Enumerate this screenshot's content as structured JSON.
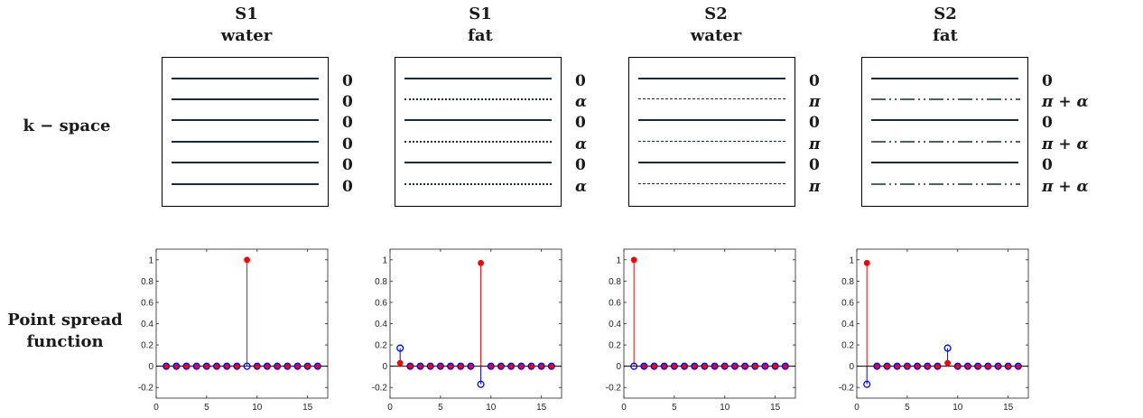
{
  "panels": [
    {
      "id": "s1-water",
      "title": [
        "S1",
        "water"
      ],
      "lines": [
        "solid",
        "solid",
        "solid",
        "solid",
        "solid",
        "solid"
      ],
      "phases": [
        "0",
        "0",
        "0",
        "0",
        "0",
        "0"
      ]
    },
    {
      "id": "s1-fat",
      "title": [
        "S1",
        "fat"
      ],
      "lines": [
        "solid",
        "dotted",
        "solid",
        "dotted",
        "solid",
        "dotted"
      ],
      "phases": [
        "0",
        "α",
        "0",
        "α",
        "0",
        "α"
      ]
    },
    {
      "id": "s2-water",
      "title": [
        "S2",
        "water"
      ],
      "lines": [
        "solid",
        "dashed",
        "solid",
        "dashed",
        "solid",
        "dashed"
      ],
      "phases": [
        "0",
        "π",
        "0",
        "π",
        "0",
        "π"
      ]
    },
    {
      "id": "s2-fat",
      "title": [
        "S2",
        "fat"
      ],
      "lines": [
        "solid",
        "dashdot",
        "solid",
        "dashdot",
        "solid",
        "dashdot"
      ],
      "phases": [
        "0",
        "π + α",
        "0",
        "π + α",
        "0",
        "π + α"
      ]
    }
  ],
  "row_labels": {
    "kspace": "k − space",
    "psf_line1": "Point spread",
    "psf_line2": "function"
  },
  "colors": {
    "red": "#ff0000",
    "blue": "#0000ff",
    "line": "#1a2a36"
  },
  "chart_data": [
    {
      "type": "stem",
      "id": "psf-s1-water",
      "xlim": [
        0,
        17
      ],
      "ylim": [
        -0.3,
        1.1
      ],
      "xticks": [
        0,
        5,
        10,
        15
      ],
      "yticks": [
        -0.2,
        0,
        0.2,
        0.4,
        0.6,
        0.8,
        1
      ],
      "ytick_labels": [
        "-0.2",
        "0",
        "0.2",
        "0.4",
        "0.6",
        "0.8",
        "1"
      ],
      "red": {
        "name": "filled",
        "x": [
          1,
          2,
          3,
          4,
          5,
          6,
          7,
          8,
          9,
          10,
          11,
          12,
          13,
          14,
          15,
          16
        ],
        "y": [
          0,
          0,
          0,
          0,
          0,
          0,
          0,
          0,
          1,
          0,
          0,
          0,
          0,
          0,
          0,
          0
        ]
      },
      "blue": {
        "name": "open",
        "x": [
          1,
          2,
          3,
          4,
          5,
          6,
          7,
          8,
          9,
          10,
          11,
          12,
          13,
          14,
          15,
          16
        ],
        "y": [
          0,
          0,
          0,
          0,
          0,
          0,
          0,
          0,
          0,
          0,
          0,
          0,
          0,
          0,
          0,
          0
        ]
      }
    },
    {
      "type": "stem",
      "id": "psf-s1-fat",
      "xlim": [
        0,
        17
      ],
      "ylim": [
        -0.3,
        1.1
      ],
      "xticks": [
        0,
        5,
        10,
        15
      ],
      "yticks": [
        -0.2,
        0,
        0.2,
        0.4,
        0.6,
        0.8,
        1
      ],
      "ytick_labels": [
        "-0.2",
        "0",
        "0.2",
        "0.4",
        "0.6",
        "0.8",
        "1"
      ],
      "red": {
        "name": "filled",
        "x": [
          1,
          2,
          3,
          4,
          5,
          6,
          7,
          8,
          9,
          10,
          11,
          12,
          13,
          14,
          15,
          16
        ],
        "y": [
          0.03,
          0,
          0,
          0,
          0,
          0,
          0,
          0,
          0.97,
          0,
          0,
          0,
          0,
          0,
          0,
          0
        ]
      },
      "blue": {
        "name": "open",
        "x": [
          1,
          2,
          3,
          4,
          5,
          6,
          7,
          8,
          9,
          10,
          11,
          12,
          13,
          14,
          15,
          16
        ],
        "y": [
          0.17,
          0,
          0,
          0,
          0,
          0,
          0,
          0,
          -0.17,
          0,
          0,
          0,
          0,
          0,
          0,
          0
        ]
      }
    },
    {
      "type": "stem",
      "id": "psf-s2-water",
      "xlim": [
        0,
        17
      ],
      "ylim": [
        -0.3,
        1.1
      ],
      "xticks": [
        0,
        5,
        10,
        15
      ],
      "yticks": [
        -0.2,
        0,
        0.2,
        0.4,
        0.6,
        0.8,
        1
      ],
      "ytick_labels": [
        "-0.2",
        "0",
        "0.2",
        "0.4",
        "0.6",
        "0.8",
        "1"
      ],
      "red": {
        "name": "filled",
        "x": [
          1,
          2,
          3,
          4,
          5,
          6,
          7,
          8,
          9,
          10,
          11,
          12,
          13,
          14,
          15,
          16
        ],
        "y": [
          1,
          0,
          0,
          0,
          0,
          0,
          0,
          0,
          0,
          0,
          0,
          0,
          0,
          0,
          0,
          0
        ]
      },
      "blue": {
        "name": "open",
        "x": [
          1,
          2,
          3,
          4,
          5,
          6,
          7,
          8,
          9,
          10,
          11,
          12,
          13,
          14,
          15,
          16
        ],
        "y": [
          0,
          0,
          0,
          0,
          0,
          0,
          0,
          0,
          0,
          0,
          0,
          0,
          0,
          0,
          0,
          0
        ]
      }
    },
    {
      "type": "stem",
      "id": "psf-s2-fat",
      "xlim": [
        0,
        17
      ],
      "ylim": [
        -0.3,
        1.1
      ],
      "xticks": [
        0,
        5,
        10,
        15
      ],
      "yticks": [
        -0.2,
        0,
        0.2,
        0.4,
        0.6,
        0.8,
        1
      ],
      "ytick_labels": [
        "-0.2",
        "0",
        "0.2",
        "0.4",
        "0.6",
        "0.8",
        "1"
      ],
      "red": {
        "name": "filled",
        "x": [
          1,
          2,
          3,
          4,
          5,
          6,
          7,
          8,
          9,
          10,
          11,
          12,
          13,
          14,
          15,
          16
        ],
        "y": [
          0.97,
          0,
          0,
          0,
          0,
          0,
          0,
          0,
          0.03,
          0,
          0,
          0,
          0,
          0,
          0,
          0
        ]
      },
      "blue": {
        "name": "open",
        "x": [
          1,
          2,
          3,
          4,
          5,
          6,
          7,
          8,
          9,
          10,
          11,
          12,
          13,
          14,
          15,
          16
        ],
        "y": [
          -0.17,
          0,
          0,
          0,
          0,
          0,
          0,
          0,
          0.17,
          0,
          0,
          0,
          0,
          0,
          0,
          0
        ]
      }
    }
  ]
}
